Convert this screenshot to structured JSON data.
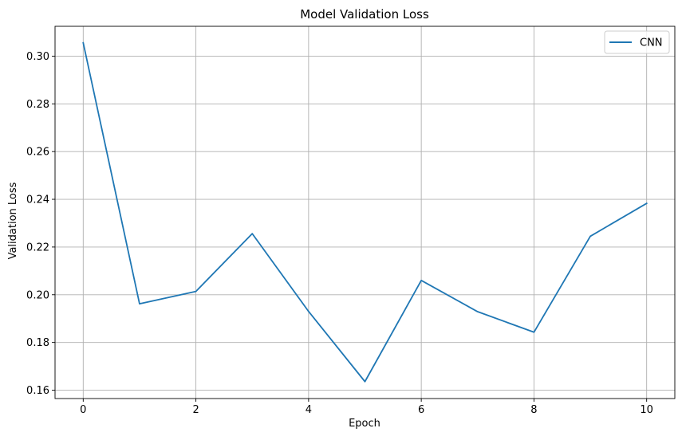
{
  "chart_data": {
    "type": "line",
    "title": "Model Validation Loss",
    "xlabel": "Epoch",
    "ylabel": "Validation Loss",
    "xlim": [
      -0.5,
      10.5
    ],
    "ylim": [
      0.1565,
      0.3125
    ],
    "xticks": [
      0,
      2,
      4,
      6,
      8,
      10
    ],
    "xtick_labels": [
      "0",
      "2",
      "4",
      "6",
      "8",
      "10"
    ],
    "yticks": [
      0.16,
      0.18,
      0.2,
      0.22,
      0.24,
      0.26,
      0.28,
      0.3
    ],
    "ytick_labels": [
      "0.16",
      "0.18",
      "0.20",
      "0.22",
      "0.24",
      "0.26",
      "0.28",
      "0.30"
    ],
    "grid": true,
    "legend_position": "top-right",
    "series": [
      {
        "name": "CNN",
        "color": "#1f77b4",
        "x": [
          0,
          1,
          2,
          3,
          4,
          5,
          6,
          7,
          8,
          9,
          10
        ],
        "y": [
          0.3056,
          0.1962,
          0.2014,
          0.2256,
          0.193,
          0.1636,
          0.206,
          0.1929,
          0.1843,
          0.2245,
          0.2383
        ]
      }
    ]
  }
}
